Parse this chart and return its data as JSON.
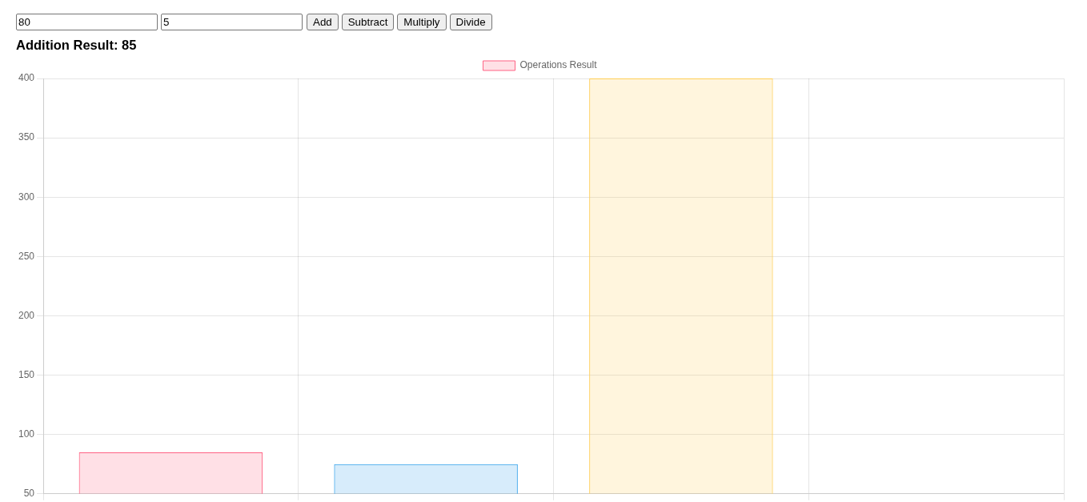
{
  "chart_data": {
    "type": "bar",
    "title": "Addition Result: 85",
    "annotations": [
      "80",
      "5",
      "Add",
      "Subtract",
      "Multiply",
      "Divide"
    ],
    "categories": [
      null,
      null,
      null,
      null
    ],
    "series": [
      {
        "name": "Operations Result",
        "colors": [
          "#ff6384",
          "#36a2eb",
          "#ffce56",
          null
        ],
        "values": [
          85,
          75,
          400,
          null
        ]
      }
    ],
    "ylim": [
      50,
      400
    ],
    "yticks": [
      50,
      100,
      150,
      200,
      250,
      300,
      350,
      400
    ],
    "grid": true,
    "legend": "top",
    "tick_labels": "y"
  }
}
